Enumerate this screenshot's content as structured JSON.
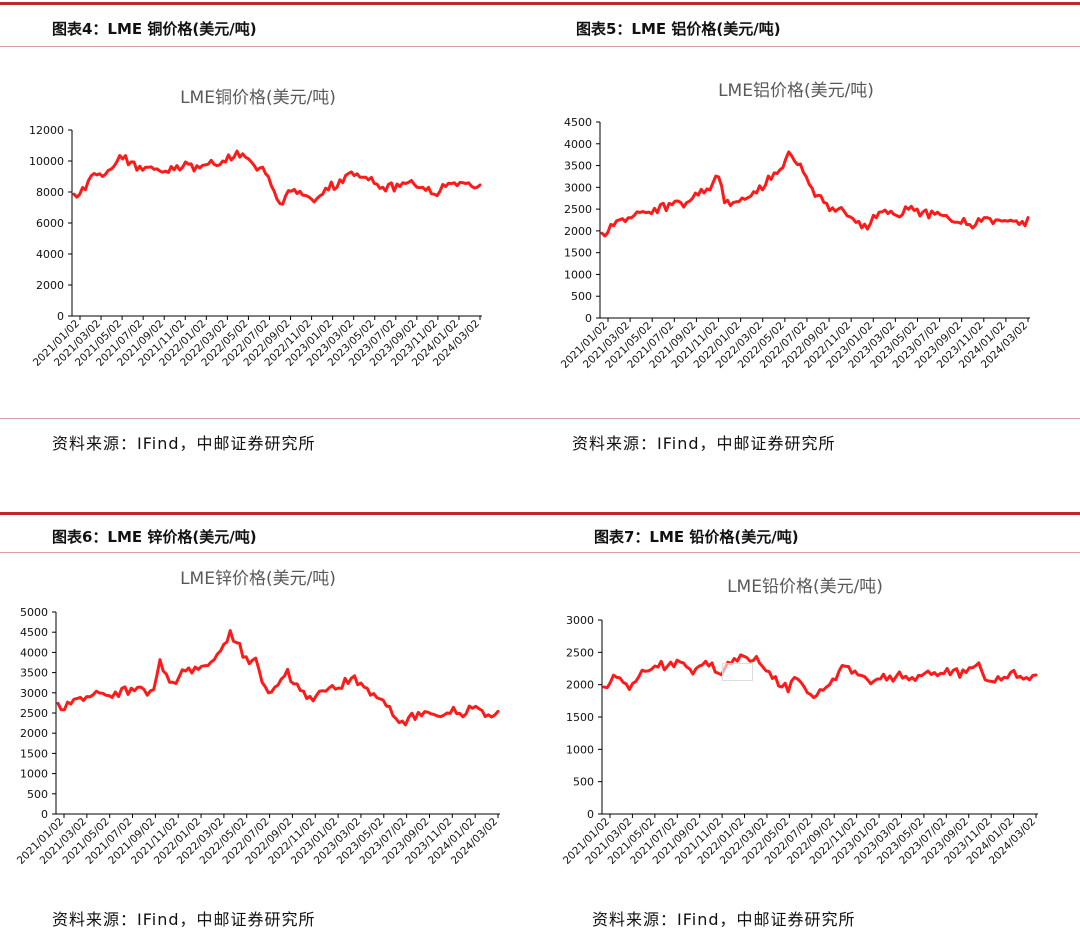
{
  "panels": [
    {
      "figure_title": "图表4：LME 铜价格(美元/吨)",
      "source": "资料来源：IFind，中邮证券研究所",
      "chart_data": {
        "type": "line",
        "title": "LME铜价格(美元/吨)",
        "xlabel": "",
        "ylabel": "",
        "ylim": [
          0,
          12000
        ],
        "yticks": [
          0,
          2000,
          4000,
          6000,
          8000,
          10000,
          12000
        ],
        "xticks": [
          "2021/01/02",
          "2021/03/02",
          "2021/05/02",
          "2021/07/02",
          "2021/09/02",
          "2021/11/02",
          "2022/01/02",
          "2022/03/02",
          "2022/05/02",
          "2022/07/02",
          "2022/09/02",
          "2022/11/02",
          "2023/01/02",
          "2023/03/02",
          "2023/05/02",
          "2023/07/02",
          "2023/09/02",
          "2023/11/02",
          "2024/01/02",
          "2024/03/02"
        ],
        "color": "#ff1a1a",
        "grid": false,
        "series": [
          {
            "values": [
              8000,
              7900,
              8100,
              8900,
              9200,
              9000,
              9300,
              9800,
              10400,
              10300,
              9800,
              9500,
              9400,
              9500,
              9600,
              9400,
              9300,
              9500,
              9800,
              9600,
              9700,
              9500,
              9600,
              9700,
              9900,
              9800,
              10000,
              10300,
              10400,
              10300,
              10200,
              9800,
              9500,
              9600,
              8900,
              8200,
              7300,
              7700,
              7900,
              8000,
              7800,
              7600,
              7500,
              7800,
              8200,
              8500,
              8400,
              8600,
              9100,
              9200,
              9000,
              8900,
              8800,
              8600,
              8300,
              8400,
              8200,
              8400,
              8500,
              8600,
              8400,
              8300,
              8200,
              8000,
              8100,
              8300,
              8400,
              8500,
              8600,
              8500,
              8400,
              8500
            ]
          }
        ]
      }
    },
    {
      "figure_title": "图表5：LME 铝价格(美元/吨)",
      "source": "资料来源：IFind，中邮证券研究所",
      "chart_data": {
        "type": "line",
        "title": "LME铝价格(美元/吨)",
        "xlabel": "",
        "ylabel": "",
        "ylim": [
          0,
          4500
        ],
        "yticks": [
          0,
          500,
          1000,
          1500,
          2000,
          2500,
          3000,
          3500,
          4000,
          4500
        ],
        "xticks": [
          "2021/01/02",
          "2021/03/02",
          "2021/05/02",
          "2021/07/02",
          "2021/09/02",
          "2021/11/02",
          "2022/01/02",
          "2022/03/02",
          "2022/05/02",
          "2022/07/02",
          "2022/09/02",
          "2022/11/02",
          "2023/01/02",
          "2023/03/02",
          "2023/05/02",
          "2023/07/02",
          "2023/09/02",
          "2023/11/02",
          "2024/01/02",
          "2024/03/02"
        ],
        "color": "#ff1a1a",
        "grid": false,
        "series": [
          {
            "values": [
              2000,
              1980,
              2100,
              2200,
              2250,
              2300,
              2400,
              2500,
              2450,
              2500,
              2550,
              2500,
              2600,
              2650,
              2600,
              2700,
              2850,
              2900,
              3000,
              3100,
              3200,
              2700,
              2600,
              2650,
              2700,
              2800,
              2900,
              3000,
              3100,
              3200,
              3300,
              3400,
              3850,
              3600,
              3500,
              3300,
              3000,
              2800,
              2600,
              2500,
              2450,
              2500,
              2400,
              2300,
              2200,
              2100,
              2200,
              2300,
              2400,
              2450,
              2400,
              2300,
              2500,
              2600,
              2500,
              2400,
              2350,
              2400,
              2350,
              2300,
              2250,
              2200,
              2250,
              2200,
              2150,
              2200,
              2250,
              2200,
              2250,
              2200,
              2300,
              2250,
              2200,
              2250
            ]
          }
        ]
      }
    },
    {
      "figure_title": "图表6：LME 锌价格(美元/吨)",
      "source": "资料来源：IFind，中邮证券研究所",
      "chart_data": {
        "type": "line",
        "title": "LME锌价格(美元/吨)",
        "xlabel": "",
        "ylabel": "",
        "ylim": [
          0,
          5000
        ],
        "yticks": [
          0,
          500,
          1000,
          1500,
          2000,
          2500,
          3000,
          3500,
          4000,
          4500,
          5000
        ],
        "xticks": [
          "2021/01/02",
          "2021/03/02",
          "2021/05/02",
          "2021/07/02",
          "2021/09/02",
          "2021/11/02",
          "2022/01/02",
          "2022/03/02",
          "2022/05/02",
          "2022/07/02",
          "2022/09/02",
          "2022/11/02",
          "2023/01/02",
          "2023/03/02",
          "2023/05/02",
          "2023/07/02",
          "2023/09/02",
          "2023/11/02",
          "2024/01/02",
          "2024/03/02"
        ],
        "color": "#ff1a1a",
        "grid": false,
        "series": [
          {
            "values": [
              2800,
              2600,
              2700,
              2800,
              2850,
              2900,
              3000,
              3050,
              2950,
              3000,
              3050,
              3000,
              3050,
              3100,
              3000,
              3100,
              3800,
              3400,
              3300,
              3400,
              3500,
              3550,
              3600,
              3650,
              3700,
              4000,
              4200,
              4500,
              4300,
              3900,
              3700,
              3800,
              3300,
              3000,
              3100,
              3400,
              3600,
              3200,
              3000,
              2900,
              2800,
              3000,
              3100,
              3200,
              3100,
              3300,
              3400,
              3200,
              3100,
              3000,
              2900,
              2800,
              2600,
              2400,
              2300,
              2350,
              2400,
              2450,
              2500,
              2400,
              2450,
              2500,
              2600,
              2550,
              2500,
              2600,
              2550,
              2450,
              2400,
              2500
            ]
          }
        ]
      }
    },
    {
      "figure_title": "图表7：LME 铅价格(美元/吨)",
      "source": "资料来源：IFind，中邮证券研究所",
      "chart_data": {
        "type": "line",
        "title": "LME铅价格(美元/吨)",
        "xlabel": "",
        "ylabel": "",
        "ylim": [
          0,
          3000
        ],
        "yticks": [
          0,
          500,
          1000,
          1500,
          2000,
          2500,
          3000
        ],
        "xticks": [
          "2021/01/02",
          "2021/03/02",
          "2021/05/02",
          "2021/07/02",
          "2021/09/02",
          "2021/11/02",
          "2022/01/02",
          "2022/03/02",
          "2022/05/02",
          "2022/07/02",
          "2022/09/02",
          "2022/11/02",
          "2023/01/02",
          "2023/03/02",
          "2023/05/02",
          "2023/07/02",
          "2023/09/02",
          "2023/11/02",
          "2024/01/02",
          "2024/03/02"
        ],
        "color": "#ff1a1a",
        "grid": false,
        "series": [
          {
            "values": [
              2000,
              2050,
              2100,
              2000,
              1950,
              2050,
              2200,
              2250,
              2300,
              2350,
              2250,
              2300,
              2350,
              2250,
              2200,
              2300,
              2350,
              2300,
              2200,
              2250,
              2300,
              2400,
              2450,
              2350,
              2400,
              2300,
              2200,
              2100,
              2000,
              1900,
              2100,
              2000,
              1900,
              1800,
              1900,
              2000,
              2100,
              2200,
              2250,
              2200,
              2150,
              2100,
              2050,
              2100,
              2150,
              2100,
              2150,
              2100,
              2050,
              2100,
              2150,
              2200,
              2150,
              2200,
              2250,
              2200,
              2150,
              2200,
              2250,
              2300,
              2100,
              2050,
              2100,
              2150,
              2200,
              2100,
              2050,
              2100,
              2150
            ]
          }
        ]
      }
    }
  ]
}
